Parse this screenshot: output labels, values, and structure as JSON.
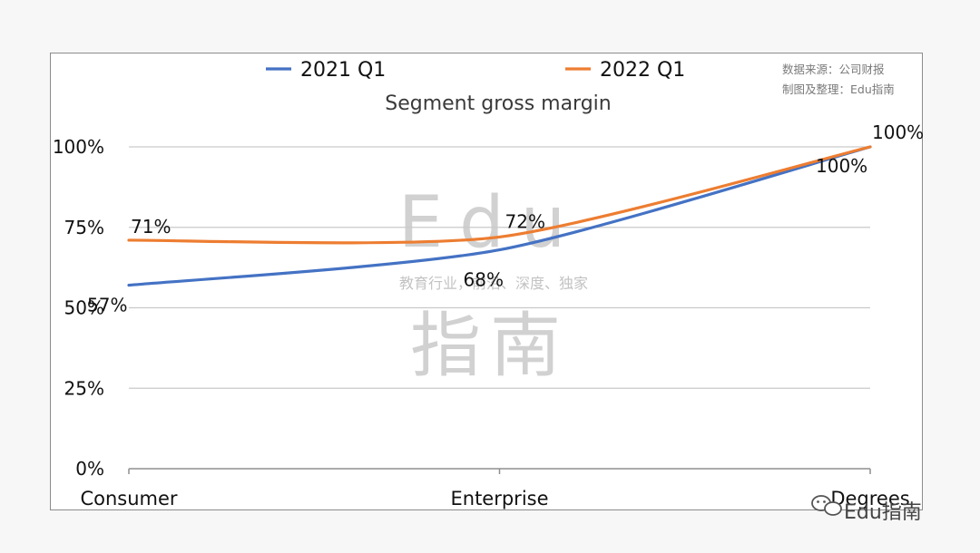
{
  "chart_data": {
    "type": "line",
    "title": "Segment gross margin",
    "categories": [
      "Consumer",
      "Enterprise",
      "Degrees"
    ],
    "series": [
      {
        "name": "2021 Q1",
        "values": [
          57,
          68,
          100
        ],
        "labels": [
          "57%",
          "68%",
          "100%"
        ],
        "color": "#4472c4"
      },
      {
        "name": "2022 Q1",
        "values": [
          71,
          72,
          100
        ],
        "labels": [
          "71%",
          "72%",
          "100%"
        ],
        "color": "#ed7d31"
      }
    ],
    "yticks": [
      "0%",
      "25%",
      "50%",
      "75%",
      "100%"
    ],
    "ylim": [
      0,
      100
    ],
    "grid": true,
    "legend": "top"
  },
  "source_note": {
    "line1": "数据来源：公司财报",
    "line2": "制图及整理：Edu指南"
  },
  "watermark": {
    "latin": "Edu",
    "tagline": "教育行业，前沿、深度、独家",
    "cn": "指南"
  },
  "brand": {
    "name": "Edu指南",
    "icon": "wechat-icon"
  }
}
